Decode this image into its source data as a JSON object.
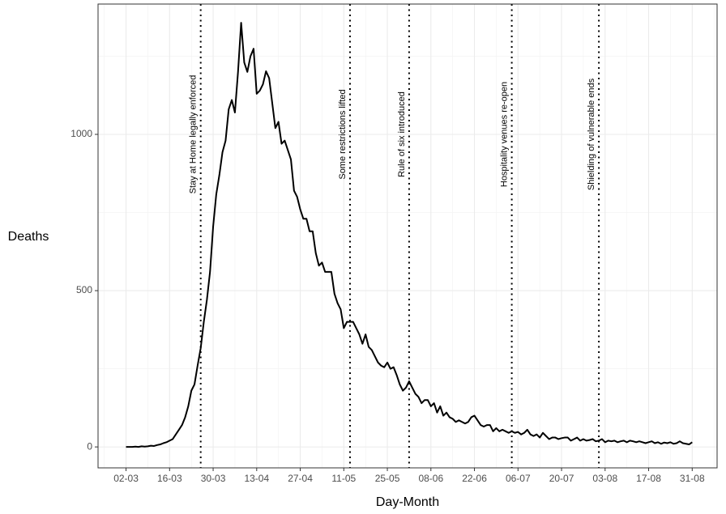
{
  "chart_data": {
    "type": "line",
    "x_label": "Day-Month",
    "y_label": "Deaths",
    "x": [
      "02-03",
      "03-03",
      "04-03",
      "05-03",
      "06-03",
      "07-03",
      "08-03",
      "09-03",
      "10-03",
      "11-03",
      "12-03",
      "13-03",
      "14-03",
      "15-03",
      "16-03",
      "17-03",
      "18-03",
      "19-03",
      "20-03",
      "21-03",
      "22-03",
      "23-03",
      "24-03",
      "25-03",
      "26-03",
      "27-03",
      "28-03",
      "29-03",
      "30-03",
      "31-03",
      "01-04",
      "02-04",
      "03-04",
      "04-04",
      "05-04",
      "06-04",
      "07-04",
      "08-04",
      "09-04",
      "10-04",
      "11-04",
      "12-04",
      "13-04",
      "14-04",
      "15-04",
      "16-04",
      "17-04",
      "18-04",
      "19-04",
      "20-04",
      "21-04",
      "22-04",
      "23-04",
      "24-04",
      "25-04",
      "26-04",
      "27-04",
      "28-04",
      "29-04",
      "30-04",
      "01-05",
      "02-05",
      "03-05",
      "04-05",
      "05-05",
      "06-05",
      "07-05",
      "08-05",
      "09-05",
      "10-05",
      "11-05",
      "12-05",
      "13-05",
      "14-05",
      "15-05",
      "16-05",
      "17-05",
      "18-05",
      "19-05",
      "20-05",
      "21-05",
      "22-05",
      "23-05",
      "24-05",
      "25-05",
      "26-05",
      "27-05",
      "28-05",
      "29-05",
      "30-05",
      "31-05",
      "01-06",
      "02-06",
      "03-06",
      "04-06",
      "05-06",
      "06-06",
      "07-06",
      "08-06",
      "09-06",
      "10-06",
      "11-06",
      "12-06",
      "13-06",
      "14-06",
      "15-06",
      "16-06",
      "17-06",
      "18-06",
      "19-06",
      "20-06",
      "21-06",
      "22-06",
      "23-06",
      "24-06",
      "25-06",
      "26-06",
      "27-06",
      "28-06",
      "29-06",
      "30-06",
      "01-07",
      "02-07",
      "03-07",
      "04-07",
      "05-07",
      "06-07",
      "07-07",
      "08-07",
      "09-07",
      "10-07",
      "11-07",
      "12-07",
      "13-07",
      "14-07",
      "15-07",
      "16-07",
      "17-07",
      "18-07",
      "19-07",
      "20-07",
      "21-07",
      "22-07",
      "23-07",
      "24-07",
      "25-07",
      "26-07",
      "27-07",
      "28-07",
      "29-07",
      "30-07",
      "31-07",
      "01-08",
      "02-08",
      "03-08",
      "04-08",
      "05-08",
      "06-08",
      "07-08",
      "08-08",
      "09-08",
      "10-08",
      "11-08",
      "12-08",
      "13-08",
      "14-08",
      "15-08",
      "16-08",
      "17-08",
      "18-08",
      "19-08",
      "20-08",
      "21-08",
      "22-08",
      "23-08",
      "24-08",
      "25-08",
      "26-08",
      "27-08",
      "28-08",
      "29-08",
      "30-08",
      "31-08"
    ],
    "series": [
      {
        "name": "Deaths",
        "color": "#000000",
        "values": [
          0,
          0,
          0,
          1,
          0,
          2,
          1,
          2,
          4,
          3,
          6,
          8,
          12,
          15,
          20,
          25,
          40,
          55,
          70,
          95,
          130,
          180,
          200,
          260,
          316,
          400,
          471,
          560,
          705,
          808,
          870,
          943,
          980,
          1080,
          1110,
          1070,
          1200,
          1357,
          1230,
          1200,
          1250,
          1274,
          1130,
          1140,
          1160,
          1202,
          1180,
          1100,
          1020,
          1040,
          970,
          980,
          950,
          920,
          820,
          800,
          760,
          730,
          730,
          690,
          690,
          620,
          580,
          590,
          560,
          560,
          560,
          490,
          460,
          440,
          380,
          400,
          400,
          400,
          380,
          360,
          330,
          360,
          320,
          310,
          290,
          270,
          260,
          255,
          270,
          250,
          255,
          230,
          200,
          180,
          190,
          210,
          190,
          170,
          160,
          140,
          150,
          150,
          130,
          140,
          110,
          130,
          100,
          110,
          95,
          90,
          80,
          85,
          80,
          75,
          80,
          95,
          100,
          85,
          70,
          65,
          70,
          70,
          50,
          60,
          50,
          55,
          50,
          45,
          50,
          45,
          48,
          40,
          45,
          55,
          40,
          35,
          40,
          30,
          45,
          35,
          25,
          30,
          30,
          25,
          28,
          30,
          30,
          20,
          25,
          30,
          20,
          25,
          20,
          22,
          25,
          18,
          20,
          25,
          15,
          20,
          18,
          20,
          15,
          18,
          20,
          15,
          20,
          18,
          15,
          18,
          15,
          12,
          15,
          18,
          12,
          15,
          10,
          14,
          12,
          15,
          10,
          12,
          18,
          12,
          10,
          8,
          15
        ]
      }
    ],
    "xlim": [
      "22-02",
      "08-09"
    ],
    "xticks": [
      "02-03",
      "16-03",
      "30-03",
      "13-04",
      "27-04",
      "11-05",
      "25-05",
      "08-06",
      "22-06",
      "06-07",
      "20-07",
      "03-08",
      "17-08",
      "31-08"
    ],
    "ylim": [
      -67,
      1417
    ],
    "yticks": [
      0,
      500,
      1000
    ],
    "grid": true,
    "annotations": [
      {
        "x": "26-03",
        "label": "Stay at Home legally enforced"
      },
      {
        "x": "13-05",
        "label": "Some restrictions lifted"
      },
      {
        "x": "01-06",
        "label": "Rule of six introduced"
      },
      {
        "x": "04-07",
        "label": "Hospitality venues re-open"
      },
      {
        "x": "01-08",
        "label": "Shielding of vulnerable ends"
      }
    ]
  }
}
